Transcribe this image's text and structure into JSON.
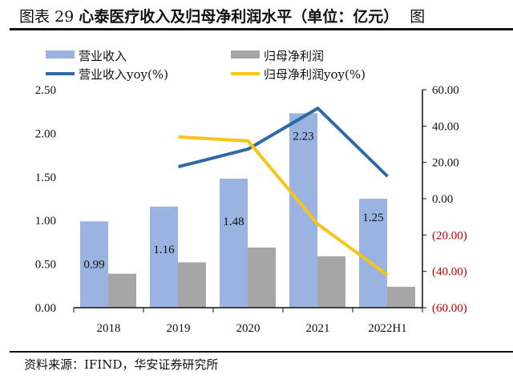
{
  "title": {
    "prefix": "图表 29",
    "text": "心泰医疗收入及归母净利润水平（单位：亿元）",
    "overflow": "图"
  },
  "source": "资料来源：IFIND，华安证券研究所",
  "colors": {
    "revenue": "#9bb3e0",
    "net_profit": "#a6a6a6",
    "revenue_yoy": "#2e6aa6",
    "net_profit_yoy": "#f5c518",
    "negative_tick": "#c00000"
  },
  "chart_data": {
    "type": "bar+line",
    "categories": [
      "2018",
      "2019",
      "2020",
      "2021",
      "2022H1"
    ],
    "series": [
      {
        "name": "营业收入",
        "type": "bar",
        "axis": "left",
        "values": [
          0.99,
          1.16,
          1.48,
          2.23,
          1.25
        ],
        "data_labels": [
          "0.99",
          "1.16",
          "1.48",
          "2.23",
          "1.25"
        ]
      },
      {
        "name": "归母净利润",
        "type": "bar",
        "axis": "left",
        "values": [
          0.39,
          0.52,
          0.69,
          0.59,
          0.24
        ]
      },
      {
        "name": "营业收入yoy(%)",
        "type": "line",
        "axis": "right",
        "values": [
          null,
          17.6,
          27.3,
          49.8,
          12.3
        ]
      },
      {
        "name": "归母净利润yoy(%)",
        "type": "line",
        "axis": "right",
        "values": [
          null,
          34.0,
          31.8,
          -14.0,
          -42.0
        ]
      }
    ],
    "left_axis": {
      "range": [
        0,
        2.5
      ],
      "ticks": [
        "0.00",
        "0.50",
        "1.00",
        "1.50",
        "2.00",
        "2.50"
      ]
    },
    "right_axis": {
      "range": [
        -60,
        60
      ],
      "ticks": [
        "(60.00)",
        "(40.00)",
        "(20.00)",
        "0.00",
        "20.00",
        "40.00",
        "60.00"
      ]
    },
    "legend": "top",
    "grid": false
  }
}
